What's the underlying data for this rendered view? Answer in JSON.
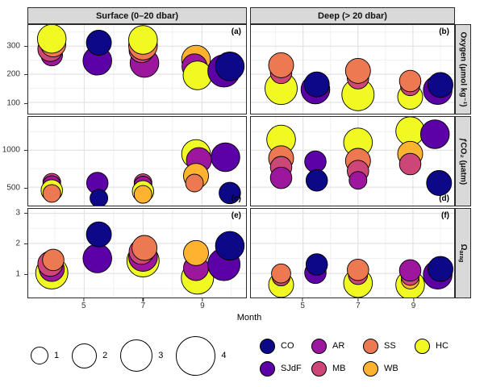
{
  "legend": {
    "sizes": [
      1,
      2,
      3,
      4
    ],
    "stations": [
      {
        "label": "CO",
        "color": "#0d0887"
      },
      {
        "label": "AR",
        "color": "#9c179e"
      },
      {
        "label": "SS",
        "color": "#ed7953"
      },
      {
        "label": "HC",
        "color": "#f0f921"
      },
      {
        "label": "SJdF",
        "color": "#5c01a6"
      },
      {
        "label": "MB",
        "color": "#cc4778"
      },
      {
        "label": "WB",
        "color": "#fdb32f"
      }
    ]
  },
  "chart_data": {
    "type": "scatter",
    "subtype": "faceted-bubble-plot",
    "x": {
      "label": "Month",
      "ticks": [
        5,
        7,
        9
      ],
      "lim": [
        3.1,
        10.5
      ]
    },
    "columns": [
      "Surface (0–20 dbar)",
      "Deep (> 20 dbar)"
    ],
    "rows": [
      {
        "label": "Oxygen (μmol kg⁻¹)",
        "ticks": [
          100,
          200,
          300
        ],
        "lim": [
          60,
          375
        ]
      },
      {
        "label": "ƒCO₂ (μatm)",
        "ticks": [
          500,
          1000
        ],
        "lim": [
          250,
          1450
        ]
      },
      {
        "label": "Ω",
        "label_sub": "arag",
        "ticks": [
          1,
          2,
          3
        ],
        "lim": [
          0.2,
          3.15
        ]
      }
    ],
    "size_legend": {
      "values": [
        1,
        2,
        3,
        4
      ],
      "radius_base": 6.5,
      "radius_per_unit": 4.5
    },
    "panels": [
      {
        "tag": "(a)",
        "tag_pos": "tr",
        "row": 0,
        "col": 0,
        "points": [
          {
            "month": 3.9,
            "value": 268,
            "size": 1.5,
            "station": "AR"
          },
          {
            "month": 3.85,
            "value": 290,
            "size": 2,
            "station": "MB"
          },
          {
            "month": 3.95,
            "value": 306,
            "size": 2,
            "station": "SS"
          },
          {
            "month": 3.9,
            "value": 326,
            "size": 2.5,
            "station": "HC"
          },
          {
            "month": 5.45,
            "value": 248,
            "size": 2.5,
            "station": "SJdF"
          },
          {
            "month": 5.5,
            "value": 312,
            "size": 2,
            "station": "CO"
          },
          {
            "month": 7.05,
            "value": 240,
            "size": 2.5,
            "station": "AR"
          },
          {
            "month": 6.95,
            "value": 286,
            "size": 2,
            "station": "MB"
          },
          {
            "month": 7.0,
            "value": 302,
            "size": 2.5,
            "station": "SS"
          },
          {
            "month": 7.0,
            "value": 322,
            "size": 2.5,
            "station": "HC"
          },
          {
            "month": 8.8,
            "value": 252,
            "size": 2.5,
            "station": "WB"
          },
          {
            "month": 8.75,
            "value": 228,
            "size": 2,
            "station": "AR"
          },
          {
            "month": 8.85,
            "value": 196,
            "size": 2.5,
            "station": "HC"
          },
          {
            "month": 9.75,
            "value": 212,
            "size": 3,
            "station": "SJdF"
          },
          {
            "month": 9.95,
            "value": 228,
            "size": 2.5,
            "station": "CO"
          }
        ]
      },
      {
        "tag": "(b)",
        "tag_pos": "tr",
        "row": 0,
        "col": 1,
        "points": [
          {
            "month": 4.2,
            "value": 150,
            "size": 3,
            "station": "HC"
          },
          {
            "month": 4.2,
            "value": 205,
            "size": 1.5,
            "station": "MB"
          },
          {
            "month": 4.2,
            "value": 232,
            "size": 2,
            "station": "SS"
          },
          {
            "month": 5.45,
            "value": 146,
            "size": 2.5,
            "station": "SJdF"
          },
          {
            "month": 5.5,
            "value": 164,
            "size": 2,
            "station": "CO"
          },
          {
            "month": 7.0,
            "value": 128,
            "size": 3,
            "station": "HC"
          },
          {
            "month": 7.0,
            "value": 186,
            "size": 1.5,
            "station": "MB"
          },
          {
            "month": 7.0,
            "value": 212,
            "size": 2,
            "station": "SS"
          },
          {
            "month": 8.9,
            "value": 120,
            "size": 2,
            "station": "HC"
          },
          {
            "month": 8.9,
            "value": 158,
            "size": 1.2,
            "station": "MB"
          },
          {
            "month": 8.9,
            "value": 176,
            "size": 1.5,
            "station": "SS"
          },
          {
            "month": 9.9,
            "value": 144,
            "size": 2.5,
            "station": "SJdF"
          },
          {
            "month": 10.0,
            "value": 162,
            "size": 2,
            "station": "CO"
          }
        ]
      },
      {
        "tag": "(c)",
        "tag_pos": "br",
        "row": 1,
        "col": 0,
        "points": [
          {
            "month": 3.9,
            "value": 565,
            "size": 1,
            "station": "MB"
          },
          {
            "month": 3.9,
            "value": 535,
            "size": 1,
            "station": "AR"
          },
          {
            "month": 3.9,
            "value": 455,
            "size": 1.5,
            "station": "HC"
          },
          {
            "month": 3.9,
            "value": 415,
            "size": 1,
            "station": "SS"
          },
          {
            "month": 5.45,
            "value": 555,
            "size": 1.5,
            "station": "SJdF"
          },
          {
            "month": 5.5,
            "value": 350,
            "size": 1,
            "station": "CO"
          },
          {
            "month": 7.0,
            "value": 560,
            "size": 1,
            "station": "MB"
          },
          {
            "month": 7.0,
            "value": 528,
            "size": 1,
            "station": "AR"
          },
          {
            "month": 7.0,
            "value": 442,
            "size": 1.5,
            "station": "HC"
          },
          {
            "month": 7.0,
            "value": 402,
            "size": 1,
            "station": "WB"
          },
          {
            "month": 8.8,
            "value": 948,
            "size": 2.5,
            "station": "HC"
          },
          {
            "month": 8.9,
            "value": 865,
            "size": 2,
            "station": "AR"
          },
          {
            "month": 8.8,
            "value": 652,
            "size": 2,
            "station": "WB"
          },
          {
            "month": 8.75,
            "value": 555,
            "size": 1,
            "station": "SS"
          },
          {
            "month": 9.8,
            "value": 905,
            "size": 2.5,
            "station": "SJdF"
          },
          {
            "month": 9.95,
            "value": 420,
            "size": 1.5,
            "station": "CO"
          }
        ]
      },
      {
        "tag": "(d)",
        "tag_pos": "br",
        "row": 1,
        "col": 1,
        "points": [
          {
            "month": 4.2,
            "value": 1145,
            "size": 2.5,
            "station": "HC"
          },
          {
            "month": 4.2,
            "value": 890,
            "size": 2,
            "station": "SS"
          },
          {
            "month": 4.2,
            "value": 770,
            "size": 1.5,
            "station": "MB"
          },
          {
            "month": 4.2,
            "value": 625,
            "size": 1.5,
            "station": "AR"
          },
          {
            "month": 5.45,
            "value": 845,
            "size": 1.5,
            "station": "SJdF"
          },
          {
            "month": 5.5,
            "value": 590,
            "size": 1.5,
            "station": "CO"
          },
          {
            "month": 7.0,
            "value": 1105,
            "size": 2.5,
            "station": "HC"
          },
          {
            "month": 7.0,
            "value": 855,
            "size": 2,
            "station": "SS"
          },
          {
            "month": 7.0,
            "value": 718,
            "size": 1.5,
            "station": "MB"
          },
          {
            "month": 7.0,
            "value": 592,
            "size": 1,
            "station": "AR"
          },
          {
            "month": 8.9,
            "value": 1258,
            "size": 2.5,
            "station": "HC"
          },
          {
            "month": 8.9,
            "value": 950,
            "size": 2,
            "station": "WB"
          },
          {
            "month": 8.9,
            "value": 812,
            "size": 1.5,
            "station": "MB"
          },
          {
            "month": 9.8,
            "value": 1215,
            "size": 2.5,
            "station": "SJdF"
          },
          {
            "month": 9.95,
            "value": 555,
            "size": 2,
            "station": "CO"
          }
        ]
      },
      {
        "tag": "(e)",
        "tag_pos": "tr",
        "row": 2,
        "col": 0,
        "points": [
          {
            "month": 3.9,
            "value": 1.02,
            "size": 3,
            "station": "HC"
          },
          {
            "month": 3.9,
            "value": 1.15,
            "size": 2,
            "station": "AR"
          },
          {
            "month": 3.85,
            "value": 1.32,
            "size": 2,
            "station": "MB"
          },
          {
            "month": 3.95,
            "value": 1.45,
            "size": 1.5,
            "station": "SS"
          },
          {
            "month": 5.45,
            "value": 1.5,
            "size": 2.5,
            "station": "SJdF"
          },
          {
            "month": 5.5,
            "value": 2.3,
            "size": 2,
            "station": "CO"
          },
          {
            "month": 7.0,
            "value": 1.42,
            "size": 3,
            "station": "HC"
          },
          {
            "month": 7.0,
            "value": 1.55,
            "size": 2.5,
            "station": "AR"
          },
          {
            "month": 6.95,
            "value": 1.72,
            "size": 2,
            "station": "MB"
          },
          {
            "month": 7.05,
            "value": 1.85,
            "size": 2,
            "station": "SS"
          },
          {
            "month": 8.85,
            "value": 0.85,
            "size": 3,
            "station": "HC"
          },
          {
            "month": 8.8,
            "value": 1.18,
            "size": 2,
            "station": "AR"
          },
          {
            "month": 8.8,
            "value": 1.68,
            "size": 2,
            "station": "WB"
          },
          {
            "month": 9.75,
            "value": 1.3,
            "size": 3,
            "station": "SJdF"
          },
          {
            "month": 9.95,
            "value": 1.92,
            "size": 2.5,
            "station": "CO"
          }
        ]
      },
      {
        "tag": "(f)",
        "tag_pos": "tr",
        "row": 2,
        "col": 1,
        "points": [
          {
            "month": 4.2,
            "value": 0.62,
            "size": 2,
            "station": "HC"
          },
          {
            "month": 4.2,
            "value": 0.88,
            "size": 1,
            "station": "MB"
          },
          {
            "month": 4.2,
            "value": 1.0,
            "size": 1.2,
            "station": "SS"
          },
          {
            "month": 5.45,
            "value": 1.02,
            "size": 1.5,
            "station": "SJdF"
          },
          {
            "month": 5.5,
            "value": 1.3,
            "size": 1.5,
            "station": "CO"
          },
          {
            "month": 7.0,
            "value": 0.68,
            "size": 2.5,
            "station": "HC"
          },
          {
            "month": 7.0,
            "value": 0.95,
            "size": 1.2,
            "station": "MB"
          },
          {
            "month": 7.0,
            "value": 1.12,
            "size": 1.5,
            "station": "SS"
          },
          {
            "month": 8.9,
            "value": 0.62,
            "size": 2.5,
            "station": "HC"
          },
          {
            "month": 8.9,
            "value": 0.78,
            "size": 1,
            "station": "WB"
          },
          {
            "month": 8.9,
            "value": 0.9,
            "size": 1,
            "station": "MB"
          },
          {
            "month": 8.9,
            "value": 1.1,
            "size": 1.5,
            "station": "AR"
          },
          {
            "month": 9.9,
            "value": 0.96,
            "size": 2.5,
            "station": "SJdF"
          },
          {
            "month": 10.0,
            "value": 1.15,
            "size": 2,
            "station": "CO"
          }
        ]
      }
    ]
  }
}
